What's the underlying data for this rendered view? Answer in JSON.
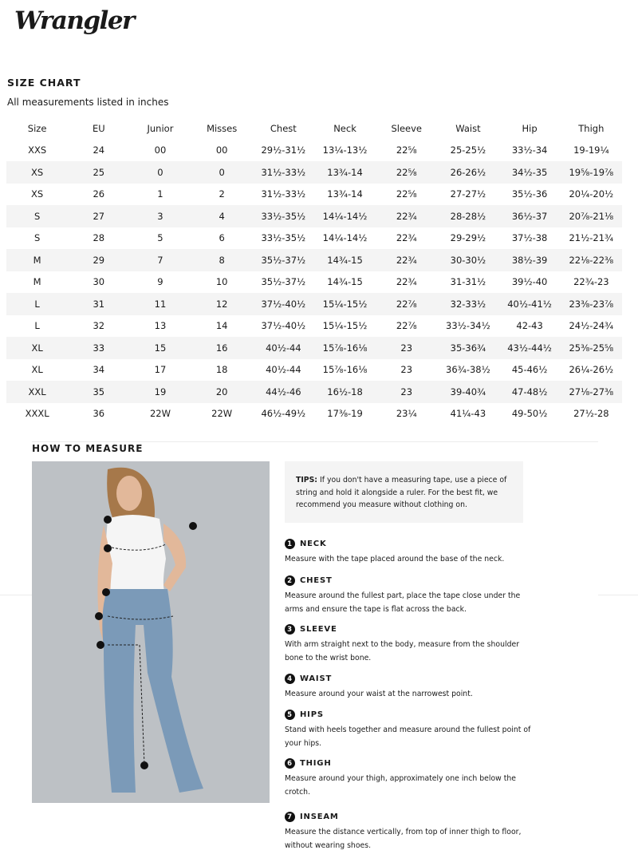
{
  "brand": "Wrangler",
  "title": "SIZE CHART",
  "subtitle": "All measurements listed in inches",
  "headers": [
    "Size",
    "EU",
    "Junior",
    "Misses",
    "Chest",
    "Neck",
    "Sleeve",
    "Waist",
    "Hip",
    "Thigh"
  ],
  "rows": [
    [
      "XXS",
      "24",
      "00",
      "00",
      "29½-31½",
      "13¼-13½",
      "22⅝",
      "25-25½",
      "33½-34",
      "19-19¼"
    ],
    [
      "XS",
      "25",
      "0",
      "0",
      "31½-33½",
      "13¾-14",
      "22⅝",
      "26-26½",
      "34½-35",
      "19⅝-19⅞"
    ],
    [
      "XS",
      "26",
      "1",
      "2",
      "31½-33½",
      "13¾-14",
      "22⅝",
      "27-27½",
      "35½-36",
      "20¼-20½"
    ],
    [
      "S",
      "27",
      "3",
      "4",
      "33½-35½",
      "14¼-14½",
      "22¾",
      "28-28½",
      "36½-37",
      "20⅞-21⅛"
    ],
    [
      "S",
      "28",
      "5",
      "6",
      "33½-35½",
      "14¼-14½",
      "22¾",
      "29-29½",
      "37½-38",
      "21½-21¾"
    ],
    [
      "M",
      "29",
      "7",
      "8",
      "35½-37½",
      "14¾-15",
      "22¾",
      "30-30½",
      "38½-39",
      "22⅛-22⅜"
    ],
    [
      "M",
      "30",
      "9",
      "10",
      "35½-37½",
      "14¾-15",
      "22¾",
      "31-31½",
      "39½-40",
      "22¾-23"
    ],
    [
      "L",
      "31",
      "11",
      "12",
      "37½-40½",
      "15¼-15½",
      "22⅞",
      "32-33½",
      "40½-41½",
      "23⅜-23⅞"
    ],
    [
      "L",
      "32",
      "13",
      "14",
      "37½-40½",
      "15¼-15½",
      "22⅞",
      "33½-34½",
      "42-43",
      "24½-24¾"
    ],
    [
      "XL",
      "33",
      "15",
      "16",
      "40½-44",
      "15⅞-16⅛",
      "23",
      "35-36¾",
      "43½-44½",
      "25⅜-25⅝"
    ],
    [
      "XL",
      "34",
      "17",
      "18",
      "40½-44",
      "15⅞-16⅛",
      "23",
      "36¾-38½",
      "45-46½",
      "26¼-26½"
    ],
    [
      "XXL",
      "35",
      "19",
      "20",
      "44½-46",
      "16½-18",
      "23",
      "39-40¾",
      "47-48½",
      "27⅛-27⅜"
    ],
    [
      "XXXL",
      "36",
      "22W",
      "22W",
      "46½-49½",
      "17⅜-19",
      "23¼",
      "41¼-43",
      "49-50½",
      "27½-28"
    ]
  ],
  "how_title": "HOW TO MEASURE",
  "tips_label": "TIPS:",
  "tips_text": " If you don't have a measuring tape, use a piece of string and hold it alongside a ruler. For the best fit, we recommend you measure without clothing on.",
  "steps": [
    {
      "n": "1",
      "title": "NECK",
      "text": "Measure with the tape placed around the base of the neck."
    },
    {
      "n": "2",
      "title": "CHEST",
      "text": "Measure around the fullest part, place the tape close under the arms and ensure the tape is flat across the back."
    },
    {
      "n": "3",
      "title": "SLEEVE",
      "text": "With arm straight next to the body, measure from the shoulder bone to the wrist bone."
    },
    {
      "n": "4",
      "title": "WAIST",
      "text": "Measure around your waist at the narrowest point."
    },
    {
      "n": "5",
      "title": "HIPS",
      "text": "Stand with heels together and measure around the fullest point of your hips."
    },
    {
      "n": "6",
      "title": "THIGH",
      "text": "Measure around your thigh, approximately one inch below the crotch."
    },
    {
      "n": "7",
      "title": "INSEAM",
      "text": "Measure the distance vertically, from top of inner thigh to floor, without wearing shoes."
    }
  ]
}
